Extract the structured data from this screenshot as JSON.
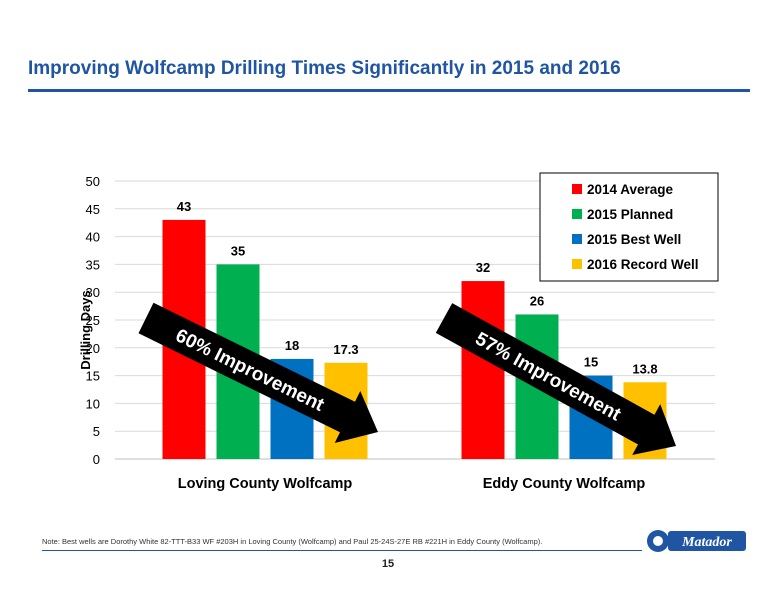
{
  "header": {
    "title": "Improving Wolfcamp Drilling Times Significantly in 2015 and 2016"
  },
  "chart_data": {
    "type": "bar",
    "categories": [
      "Loving County Wolfcamp",
      "Eddy County Wolfcamp"
    ],
    "series": [
      {
        "name": "2014 Average",
        "color": "#ff0000",
        "values": [
          43,
          32
        ],
        "labels": [
          "43",
          "32"
        ]
      },
      {
        "name": "2015 Planned",
        "color": "#00b050",
        "values": [
          35,
          26
        ],
        "labels": [
          "35",
          "26"
        ]
      },
      {
        "name": "2015 Best Well",
        "color": "#0070c0",
        "values": [
          18,
          15
        ],
        "labels": [
          "18",
          "15"
        ]
      },
      {
        "name": "2016 Record Well",
        "color": "#ffc000",
        "values": [
          17.3,
          13.8
        ],
        "labels": [
          "17.3",
          "13.8"
        ]
      }
    ],
    "ylabel": "Drilling Days",
    "ylim": [
      0,
      50
    ],
    "yticks": [
      "0",
      "5",
      "10",
      "15",
      "20",
      "25",
      "30",
      "35",
      "40",
      "45",
      "50"
    ],
    "grid": true,
    "legend": "top-right",
    "annotations": [
      "60% Improvement",
      "57% Improvement"
    ]
  },
  "footer": {
    "note": "Note: Best wells are Dorothy White 82-TTT-B33 WF #203H in Loving County (Wolfcamp) and Paul 25-24S-27E RB #221H in Eddy County (Wolfcamp).",
    "page_number": "15",
    "logo_text": "Matador"
  }
}
